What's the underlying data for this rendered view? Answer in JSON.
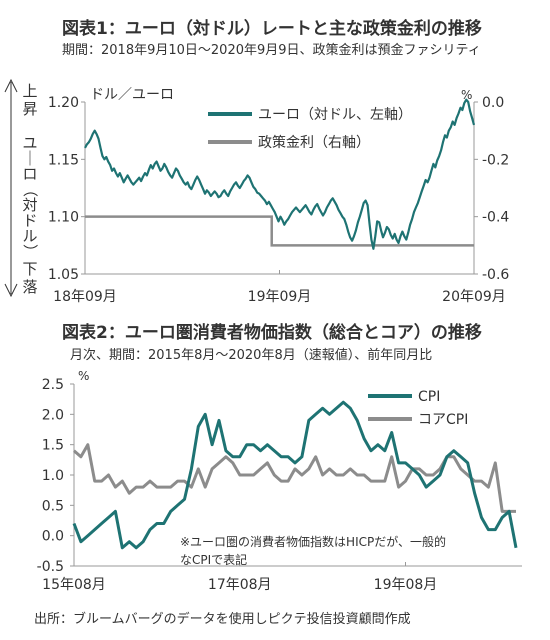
{
  "chart1": {
    "title": "図表1：ユーロ（対ドル）レートと主な政策金利の推移",
    "subtitle": "期間：2018年9月10日～2020年9月9日、政策金利は預金ファシリティ",
    "left_unit": "ドル／ユーロ",
    "right_unit": "%",
    "side_top": "上昇",
    "side_mid": "ユーロ（対ドル）",
    "side_bottom": "下落"
  },
  "chart2": {
    "title": "図表2：ユーロ圏消費者物価指数（総合とコア）の推移",
    "subtitle": "月次、期間：2015年8月～2020年8月（速報値）、前年同月比",
    "y_unit": "%",
    "note_line1": "※ユーロ圏の消費者物価指数はHICPだが、一般的",
    "note_line2": "なCPIで表記"
  },
  "source": "出所：ブルームバーグのデータを使用しピクテ投信投資顧問作成",
  "chart_data": [
    {
      "type": "line",
      "x_ticks": [
        "18年09月",
        "19年09月",
        "20年09月"
      ],
      "y_left": {
        "ticks": [
          "1.20",
          "1.15",
          "1.10",
          "1.05"
        ],
        "ylim": [
          1.05,
          1.2
        ]
      },
      "y_right": {
        "ticks": [
          "0.0",
          "-0.2",
          "-0.4",
          "-0.6"
        ],
        "ylim": [
          -0.6,
          0.0
        ]
      },
      "grid": false,
      "legend_position": "top-right",
      "series": [
        {
          "name": "ユーロ（対ドル、左軸）",
          "axis": "left",
          "color": "#1e7373",
          "values": [
            1.16,
            1.163,
            1.165,
            1.168,
            1.172,
            1.175,
            1.172,
            1.168,
            1.16,
            1.153,
            1.15,
            1.152,
            1.148,
            1.145,
            1.14,
            1.142,
            1.138,
            1.135,
            1.138,
            1.134,
            1.13,
            1.133,
            1.136,
            1.133,
            1.13,
            1.128,
            1.13,
            1.132,
            1.134,
            1.131,
            1.135,
            1.138,
            1.136,
            1.141,
            1.145,
            1.142,
            1.146,
            1.148,
            1.144,
            1.14,
            1.142,
            1.146,
            1.143,
            1.139,
            1.136,
            1.134,
            1.138,
            1.142,
            1.14,
            1.136,
            1.133,
            1.13,
            1.128,
            1.13,
            1.126,
            1.124,
            1.128,
            1.132,
            1.135,
            1.132,
            1.128,
            1.124,
            1.12,
            1.123,
            1.121,
            1.118,
            1.12,
            1.122,
            1.12,
            1.117,
            1.118,
            1.121,
            1.123,
            1.12,
            1.118,
            1.122,
            1.125,
            1.128,
            1.13,
            1.127,
            1.125,
            1.128,
            1.131,
            1.133,
            1.136,
            1.134,
            1.13,
            1.126,
            1.124,
            1.121,
            1.12,
            1.118,
            1.116,
            1.114,
            1.111,
            1.113,
            1.11,
            1.107,
            1.104,
            1.1,
            1.096,
            1.1,
            1.097,
            1.093,
            1.096,
            1.098,
            1.101,
            1.104,
            1.106,
            1.108,
            1.106,
            1.104,
            1.106,
            1.108,
            1.11,
            1.107,
            1.104,
            1.102,
            1.106,
            1.109,
            1.111,
            1.107,
            1.104,
            1.101,
            1.104,
            1.108,
            1.111,
            1.114,
            1.116,
            1.113,
            1.11,
            1.106,
            1.103,
            1.1,
            1.098,
            1.093,
            1.087,
            1.082,
            1.079,
            1.083,
            1.088,
            1.095,
            1.1,
            1.106,
            1.112,
            1.114,
            1.11,
            1.094,
            1.08,
            1.072,
            1.083,
            1.096,
            1.095,
            1.088,
            1.082,
            1.086,
            1.091,
            1.089,
            1.084,
            1.081,
            1.085,
            1.08,
            1.077,
            1.083,
            1.087,
            1.083,
            1.08,
            1.086,
            1.093,
            1.098,
            1.104,
            1.108,
            1.112,
            1.117,
            1.122,
            1.127,
            1.132,
            1.13,
            1.134,
            1.14,
            1.146,
            1.143,
            1.149,
            1.153,
            1.158,
            1.165,
            1.171,
            1.169,
            1.175,
            1.178,
            1.183,
            1.18,
            1.186,
            1.19,
            1.195,
            1.193,
            1.199,
            1.202,
            1.2,
            1.192,
            1.186,
            1.18
          ]
        },
        {
          "name": "政策金利（右軸）",
          "axis": "right",
          "color": "#8c8c8c",
          "values": [
            -0.4,
            -0.4,
            -0.4,
            -0.4,
            -0.4,
            -0.4,
            -0.4,
            -0.4,
            -0.4,
            -0.4,
            -0.4,
            -0.4,
            -0.5,
            -0.5,
            -0.5,
            -0.5,
            -0.5,
            -0.5,
            -0.5,
            -0.5,
            -0.5,
            -0.5,
            -0.5,
            -0.5,
            -0.5
          ]
        }
      ]
    },
    {
      "type": "line",
      "x_ticks": [
        "15年08月",
        "17年08月",
        "19年08月"
      ],
      "y": {
        "ticks": [
          "2.5",
          "2.0",
          "1.5",
          "1.0",
          "0.5",
          "0.0",
          "-0.5"
        ],
        "ylim": [
          -0.5,
          2.5
        ]
      },
      "grid": false,
      "legend_position": "top-right",
      "series": [
        {
          "name": "CPI",
          "color": "#1e7373",
          "values": [
            0.2,
            -0.1,
            0.0,
            0.1,
            0.2,
            0.3,
            0.4,
            -0.2,
            -0.1,
            -0.2,
            -0.1,
            0.1,
            0.2,
            0.2,
            0.4,
            0.5,
            0.6,
            1.1,
            1.8,
            2.0,
            1.5,
            1.9,
            1.4,
            1.3,
            1.3,
            1.5,
            1.5,
            1.4,
            1.5,
            1.4,
            1.3,
            1.3,
            1.2,
            1.3,
            1.9,
            2.0,
            2.1,
            2.0,
            2.1,
            2.2,
            2.1,
            1.9,
            1.6,
            1.4,
            1.5,
            1.4,
            1.7,
            1.2,
            1.2,
            1.1,
            1.0,
            0.8,
            0.9,
            1.0,
            1.3,
            1.4,
            1.3,
            1.2,
            0.7,
            0.3,
            0.1,
            0.1,
            0.3,
            0.4,
            -0.2
          ]
        },
        {
          "name": "コアCPI",
          "color": "#8c8c8c",
          "values": [
            1.4,
            1.3,
            1.5,
            0.9,
            0.9,
            1.0,
            0.8,
            0.9,
            0.7,
            0.8,
            0.8,
            0.9,
            0.8,
            0.8,
            0.8,
            0.9,
            0.9,
            0.8,
            1.1,
            0.8,
            1.1,
            1.2,
            1.3,
            1.2,
            1.0,
            1.0,
            1.0,
            1.1,
            1.2,
            1.0,
            0.9,
            0.9,
            1.1,
            1.0,
            1.1,
            1.3,
            1.0,
            1.1,
            1.0,
            1.0,
            1.1,
            1.0,
            1.0,
            0.9,
            0.9,
            0.9,
            1.3,
            0.8,
            0.9,
            1.1,
            1.1,
            1.0,
            1.0,
            1.1,
            1.3,
            1.3,
            1.1,
            1.0,
            0.9,
            0.9,
            0.8,
            1.2,
            0.4,
            0.4,
            0.4
          ]
        }
      ]
    }
  ]
}
